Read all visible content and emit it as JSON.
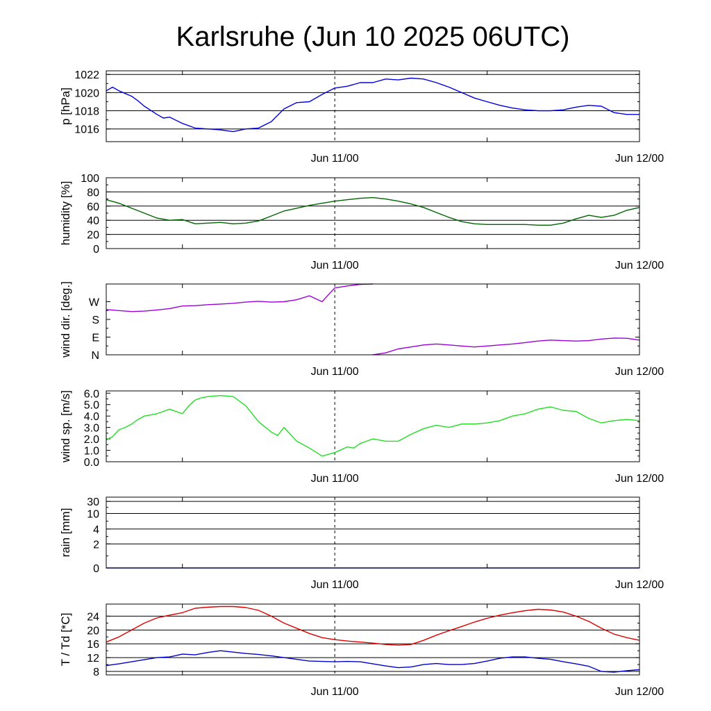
{
  "title": "Karlsruhe (Jun 10 2025 06UTC)",
  "x_axis": {
    "range_hours": [
      0,
      42
    ],
    "tick_labels": [
      {
        "hour": 18,
        "label": "Jun 11/00"
      },
      {
        "hour": 42,
        "label": "Jun 12/00"
      }
    ],
    "minor_ticks_hours": [
      6,
      30
    ],
    "dashed_marker_hour": 18
  },
  "chart_data": [
    {
      "type": "line",
      "id": "pressure",
      "ylabel": "p [hPa]",
      "ylim": [
        1014.6,
        1022.4
      ],
      "yticks": [
        1016,
        1018,
        1020,
        1022
      ],
      "tick_labels": [
        "1016",
        "1018",
        "1020",
        "1022"
      ],
      "grid": true,
      "series": [
        {
          "color": "#0000dd",
          "x": [
            0,
            0.5,
            1,
            1.5,
            2,
            2.5,
            3,
            4,
            4.5,
            5,
            6,
            7,
            8,
            9,
            9.5,
            10,
            11,
            12,
            13,
            14,
            15,
            16,
            17,
            18,
            19,
            20,
            21,
            22,
            23,
            24,
            25,
            26,
            27,
            28,
            29,
            30,
            31,
            32,
            33,
            34,
            35,
            36,
            37,
            38,
            39,
            40,
            41,
            42
          ],
          "y": [
            1020.2,
            1020.6,
            1020.2,
            1019.9,
            1019.6,
            1019.1,
            1018.5,
            1017.6,
            1017.2,
            1017.3,
            1016.6,
            1016.1,
            1016.0,
            1015.9,
            1015.8,
            1015.7,
            1016.0,
            1016.1,
            1016.8,
            1018.2,
            1018.9,
            1019.0,
            1019.8,
            1020.5,
            1020.7,
            1021.1,
            1021.1,
            1021.5,
            1021.4,
            1021.6,
            1021.5,
            1021.1,
            1020.6,
            1020.0,
            1019.4,
            1019.0,
            1018.6,
            1018.3,
            1018.1,
            1018.0,
            1018.0,
            1018.1,
            1018.4,
            1018.6,
            1018.5,
            1017.8,
            1017.6,
            1017.6
          ]
        }
      ]
    },
    {
      "type": "line",
      "id": "humidity",
      "ylabel": "humidity [%]",
      "ylim": [
        0,
        100
      ],
      "yticks": [
        0,
        20,
        40,
        60,
        80,
        100
      ],
      "tick_labels": [
        "0",
        "20",
        "40",
        "60",
        "80",
        "100"
      ],
      "grid": true,
      "series": [
        {
          "color": "#006400",
          "x": [
            0,
            1,
            2,
            3,
            4,
            5,
            6,
            7,
            8,
            9,
            10,
            11,
            12,
            13,
            14,
            15,
            16,
            17,
            18,
            19,
            20,
            21,
            22,
            23,
            24,
            25,
            26,
            27,
            28,
            29,
            30,
            31,
            32,
            33,
            34,
            35,
            36,
            37,
            38,
            39,
            40,
            41,
            42
          ],
          "y": [
            69,
            64,
            57,
            50,
            43,
            40,
            41,
            35,
            36,
            37,
            35,
            36,
            39,
            46,
            53,
            57,
            61,
            64,
            67,
            69,
            71,
            72,
            70,
            67,
            63,
            58,
            51,
            44,
            38,
            35,
            34,
            34,
            34,
            34,
            33,
            33,
            36,
            42,
            47,
            44,
            47,
            54,
            58
          ]
        }
      ]
    },
    {
      "type": "line",
      "id": "wind_direction",
      "ylabel": "wind dir. [deg.]",
      "ylim": [
        0,
        360
      ],
      "yticks": [
        0,
        90,
        180,
        270
      ],
      "tick_labels": [
        "N",
        "E",
        "S",
        "W"
      ],
      "grid": false,
      "series": [
        {
          "color": "#9b00d8",
          "x": [
            0,
            1,
            2,
            3,
            4,
            5,
            6,
            7,
            8,
            9,
            10,
            11,
            12,
            13,
            14,
            15,
            16,
            17,
            18,
            19,
            20,
            21
          ],
          "y": [
            230,
            225,
            220,
            222,
            228,
            235,
            248,
            250,
            255,
            258,
            262,
            268,
            272,
            268,
            270,
            280,
            300,
            270,
            340,
            350,
            358,
            360
          ]
        },
        {
          "color": "#9b00d8",
          "x": [
            21,
            22,
            23,
            24,
            25,
            26,
            27,
            28,
            29,
            30,
            31,
            32,
            33,
            34,
            35,
            36,
            37,
            38,
            39,
            40,
            41,
            42
          ],
          "y": [
            0,
            10,
            30,
            40,
            50,
            55,
            50,
            45,
            40,
            45,
            50,
            55,
            62,
            70,
            75,
            72,
            70,
            72,
            80,
            85,
            84,
            75
          ]
        }
      ]
    },
    {
      "type": "line",
      "id": "wind_speed",
      "ylabel": "wind sp. [m/s]",
      "ylim": [
        0,
        6.2
      ],
      "yticks": [
        0,
        1,
        2,
        3,
        4,
        5,
        6
      ],
      "tick_labels": [
        "0.0",
        "1.0",
        "2.0",
        "3.0",
        "4.0",
        "5.0",
        "6.0"
      ],
      "grid": false,
      "series": [
        {
          "color": "#22dd22",
          "x": [
            0,
            0.5,
            1,
            1.5,
            2,
            2.5,
            3,
            4,
            5,
            6,
            6.5,
            7,
            7.5,
            8,
            9,
            10,
            11,
            12,
            13,
            13.5,
            14,
            15,
            16,
            17,
            18,
            19,
            19.5,
            20,
            20.5,
            21,
            22,
            23,
            24,
            25,
            26,
            27,
            28,
            29,
            30,
            31,
            32,
            33,
            34,
            35,
            36,
            37,
            38,
            39,
            40,
            41,
            42
          ],
          "y": [
            1.9,
            2.2,
            2.8,
            3.0,
            3.3,
            3.7,
            4.0,
            4.2,
            4.6,
            4.2,
            4.9,
            5.4,
            5.6,
            5.7,
            5.8,
            5.7,
            4.9,
            3.5,
            2.6,
            2.3,
            3.0,
            1.8,
            1.2,
            0.5,
            0.8,
            1.3,
            1.2,
            1.6,
            1.8,
            2.0,
            1.8,
            1.8,
            2.4,
            2.9,
            3.2,
            3.0,
            3.3,
            3.3,
            3.4,
            3.6,
            4.0,
            4.2,
            4.6,
            4.8,
            4.5,
            4.4,
            3.8,
            3.4,
            3.6,
            3.7,
            3.6
          ]
        }
      ]
    },
    {
      "type": "line",
      "id": "rain",
      "ylabel": "rain [mm]",
      "ylim": [
        0,
        5
      ],
      "yticks": [
        0,
        1.7,
        2.75,
        3.85,
        4.7
      ],
      "tick_labels": [
        "0",
        "2",
        "4",
        "10",
        "30"
      ],
      "grid": true,
      "series": [
        {
          "color": "#0000ff",
          "x": [
            0,
            42
          ],
          "y": [
            0,
            0
          ]
        }
      ]
    },
    {
      "type": "line",
      "id": "temperature_dewpoint",
      "ylabel": "T / Td [*C]",
      "ylim": [
        7,
        27.5
      ],
      "yticks": [
        8,
        12,
        16,
        20,
        24
      ],
      "tick_labels": [
        "8",
        "12",
        "16",
        "20",
        "24"
      ],
      "grid": true,
      "series": [
        {
          "color": "#e00000",
          "x": [
            0,
            1,
            2,
            3,
            4,
            5,
            6,
            7,
            8,
            9,
            10,
            11,
            12,
            13,
            14,
            15,
            16,
            17,
            18,
            19,
            20,
            21,
            22,
            23,
            24,
            25,
            26,
            27,
            28,
            29,
            30,
            31,
            32,
            33,
            34,
            35,
            36,
            37,
            38,
            39,
            40,
            41,
            42
          ],
          "y": [
            16.5,
            18.0,
            20.0,
            22.0,
            23.5,
            24.3,
            25.0,
            26.3,
            26.6,
            26.8,
            26.8,
            26.5,
            25.7,
            24.0,
            22.0,
            20.5,
            19.0,
            17.8,
            17.2,
            16.8,
            16.5,
            16.2,
            15.8,
            15.6,
            15.8,
            17.0,
            18.5,
            19.8,
            21.0,
            22.3,
            23.4,
            24.3,
            25.0,
            25.6,
            26.0,
            25.8,
            25.2,
            24.0,
            22.5,
            20.5,
            18.8,
            17.8,
            17.0
          ]
        },
        {
          "color": "#0000cc",
          "x": [
            0,
            1,
            2,
            3,
            4,
            5,
            6,
            7,
            8,
            9,
            10,
            11,
            12,
            13,
            14,
            15,
            16,
            17,
            18,
            19,
            20,
            21,
            22,
            23,
            24,
            25,
            26,
            27,
            28,
            29,
            30,
            31,
            32,
            33,
            34,
            35,
            36,
            37,
            38,
            39,
            40,
            41,
            42
          ],
          "y": [
            9.7,
            10.2,
            10.8,
            11.4,
            12.0,
            12.2,
            13.0,
            12.8,
            13.5,
            14.0,
            13.6,
            13.2,
            12.9,
            12.5,
            12.0,
            11.5,
            11.0,
            10.9,
            10.8,
            10.9,
            10.8,
            10.2,
            9.6,
            9.1,
            9.3,
            10.0,
            10.3,
            10.0,
            10.0,
            10.3,
            11.0,
            11.8,
            12.2,
            12.2,
            11.8,
            11.5,
            10.8,
            10.2,
            9.5,
            8.0,
            7.8,
            8.2,
            8.5
          ]
        }
      ]
    }
  ]
}
